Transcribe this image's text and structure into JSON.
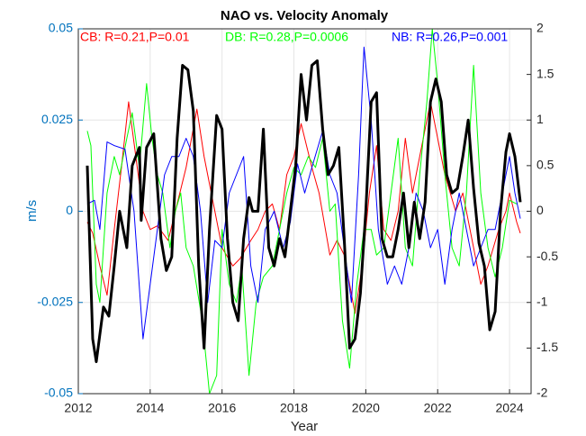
{
  "chart_data": {
    "type": "line",
    "title": "NAO vs. Velocity Anomaly",
    "xlabel": "Year",
    "ylabel": "m/s",
    "ylabel_color": "#0072bd",
    "xlim": [
      2012,
      2024.6
    ],
    "xticks": [
      2012,
      2014,
      2016,
      2018,
      2020,
      2022,
      2024
    ],
    "ylim": [
      -0.05,
      0.05
    ],
    "yticks": [
      -0.05,
      -0.025,
      0,
      0.025,
      0.05
    ],
    "y2lim": [
      -2,
      2
    ],
    "y2ticks": [
      -2,
      -1.5,
      -1,
      -0.5,
      0,
      0.5,
      1,
      1.5,
      2
    ],
    "grid": true,
    "annotations": [
      {
        "text": "CB: R=0.21,P=0.01",
        "color": "#ff0000"
      },
      {
        "text": "DB: R=0.28,P=0.0006",
        "color": "#00ff00"
      },
      {
        "text": "NB: R=0.26,P=0.001",
        "color": "#0000ff"
      }
    ],
    "series": [
      {
        "color": "#ff0000",
        "linewidth": 1,
        "x": [
          2012.25,
          2012.4,
          2012.6,
          2012.8,
          2013.0,
          2013.2,
          2013.4,
          2013.6,
          2013.8,
          2014.0,
          2014.2,
          2014.5,
          2014.7,
          2015.0,
          2015.3,
          2015.5,
          2015.8,
          2016.0,
          2016.3,
          2016.5,
          2016.8,
          2017.0,
          2017.2,
          2017.4,
          2017.6,
          2017.8,
          2018.0,
          2018.2,
          2018.5,
          2018.7,
          2019.0,
          2019.2,
          2019.4,
          2019.7,
          2019.9,
          2020.1,
          2020.3,
          2020.5,
          2020.7,
          2020.9,
          2021.1,
          2021.3,
          2021.5,
          2021.8,
          2022.0,
          2022.2,
          2022.5,
          2022.7,
          2023.0,
          2023.2,
          2023.4,
          2023.7,
          2023.9,
          2024.0,
          2024.2,
          2024.3
        ],
        "values": [
          -0.003,
          -0.006,
          -0.015,
          -0.023,
          -0.005,
          0.012,
          0.03,
          0.015,
          0.0,
          -0.005,
          -0.004,
          -0.008,
          0.0,
          0.012,
          0.028,
          0.015,
          0.0,
          -0.01,
          -0.015,
          -0.013,
          -0.008,
          -0.005,
          0.0,
          0.002,
          -0.005,
          0.01,
          0.015,
          0.024,
          0.012,
          0.005,
          -0.012,
          -0.008,
          -0.012,
          -0.028,
          -0.015,
          0.005,
          0.018,
          -0.005,
          -0.008,
          0.0,
          0.02,
          0.005,
          0.015,
          0.03,
          0.02,
          0.01,
          0.0,
          0.005,
          -0.01,
          -0.02,
          -0.015,
          -0.005,
          0.0,
          0.005,
          -0.003,
          -0.006
        ]
      },
      {
        "color": "#00ff00",
        "linewidth": 1,
        "x": [
          2012.25,
          2012.35,
          2012.5,
          2012.6,
          2012.8,
          2013.0,
          2013.15,
          2013.35,
          2013.5,
          2013.7,
          2013.9,
          2014.05,
          2014.2,
          2014.35,
          2014.55,
          2014.7,
          2014.85,
          2015.0,
          2015.2,
          2015.45,
          2015.65,
          2015.85,
          2016.0,
          2016.2,
          2016.4,
          2016.55,
          2016.75,
          2016.95,
          2017.15,
          2017.4,
          2017.6,
          2017.8,
          2018.0,
          2018.2,
          2018.4,
          2018.6,
          2018.8,
          2019.0,
          2019.15,
          2019.35,
          2019.55,
          2019.75,
          2019.95,
          2020.15,
          2020.3,
          2020.5,
          2020.7,
          2020.9,
          2021.1,
          2021.3,
          2021.5,
          2021.7,
          2021.85,
          2022.0,
          2022.2,
          2022.4,
          2022.6,
          2022.8,
          2023.0,
          2023.2,
          2023.4,
          2023.6,
          2023.8,
          2024.0,
          2024.2
        ],
        "values": [
          0.022,
          0.018,
          -0.02,
          -0.025,
          0.005,
          0.015,
          0.01,
          0.02,
          0.027,
          0.012,
          0.035,
          0.02,
          0.01,
          0.005,
          -0.01,
          0.0,
          0.005,
          -0.01,
          -0.015,
          -0.03,
          -0.05,
          -0.045,
          -0.005,
          -0.02,
          -0.025,
          -0.015,
          -0.045,
          -0.025,
          -0.018,
          -0.015,
          -0.005,
          0.005,
          0.012,
          0.01,
          0.015,
          0.012,
          0.02,
          0.0,
          0.002,
          -0.03,
          -0.043,
          -0.02,
          -0.005,
          -0.005,
          -0.012,
          -0.01,
          0.005,
          0.02,
          -0.01,
          -0.015,
          0.01,
          0.03,
          0.05,
          0.035,
          0.01,
          -0.01,
          -0.015,
          0.005,
          0.04,
          0.005,
          -0.01,
          -0.018,
          -0.01,
          0.003,
          0.002
        ]
      },
      {
        "color": "#0000ff",
        "linewidth": 1,
        "x": [
          2012.25,
          2012.45,
          2012.6,
          2012.8,
          2013.0,
          2013.3,
          2013.55,
          2013.8,
          2014.0,
          2014.2,
          2014.4,
          2014.6,
          2014.8,
          2015.0,
          2015.2,
          2015.4,
          2015.6,
          2015.8,
          2016.0,
          2016.2,
          2016.4,
          2016.6,
          2016.8,
          2017.0,
          2017.2,
          2017.45,
          2017.7,
          2017.9,
          2018.1,
          2018.3,
          2018.5,
          2018.8,
          2019.0,
          2019.2,
          2019.4,
          2019.6,
          2019.8,
          2019.95,
          2020.15,
          2020.35,
          2020.6,
          2020.8,
          2021.0,
          2021.2,
          2021.4,
          2021.6,
          2021.8,
          2022.0,
          2022.2,
          2022.4,
          2022.6,
          2022.8,
          2023.0,
          2023.2,
          2023.4,
          2023.6,
          2023.8,
          2024.0,
          2024.15,
          2024.3
        ],
        "values": [
          0.002,
          0.003,
          -0.005,
          0.019,
          0.018,
          0.017,
          0.0,
          -0.035,
          -0.02,
          -0.005,
          0.01,
          0.015,
          0.015,
          0.02,
          0.015,
          0.0,
          -0.025,
          -0.008,
          -0.01,
          0.005,
          0.01,
          0.015,
          -0.015,
          -0.025,
          -0.005,
          0.0,
          -0.01,
          -0.003,
          0.013,
          0.005,
          0.012,
          0.022,
          0.01,
          0.005,
          -0.01,
          -0.025,
          0.01,
          0.045,
          0.025,
          -0.005,
          -0.02,
          -0.015,
          -0.02,
          -0.01,
          0.005,
          0.0,
          -0.01,
          -0.005,
          -0.02,
          -0.005,
          0.005,
          -0.005,
          -0.015,
          -0.01,
          -0.005,
          -0.005,
          0.005,
          0.015,
          0.005,
          -0.002
        ]
      },
      {
        "color": "#000000",
        "linewidth": 3,
        "axis": "y2",
        "x": [
          2012.25,
          2012.4,
          2012.5,
          2012.7,
          2012.85,
          2013.0,
          2013.15,
          2013.35,
          2013.5,
          2013.7,
          2013.75,
          2013.9,
          2014.1,
          2014.3,
          2014.45,
          2014.6,
          2014.75,
          2014.9,
          2015.05,
          2015.2,
          2015.35,
          2015.5,
          2015.65,
          2015.85,
          2016.0,
          2016.15,
          2016.3,
          2016.45,
          2016.6,
          2016.75,
          2016.85,
          2017.0,
          2017.15,
          2017.3,
          2017.45,
          2017.6,
          2017.75,
          2017.9,
          2018.05,
          2018.2,
          2018.35,
          2018.5,
          2018.65,
          2018.8,
          2018.95,
          2019.1,
          2019.25,
          2019.4,
          2019.55,
          2019.7,
          2019.85,
          2020.0,
          2020.15,
          2020.3,
          2020.45,
          2020.6,
          2020.75,
          2020.9,
          2021.05,
          2021.2,
          2021.35,
          2021.5,
          2021.65,
          2021.8,
          2021.95,
          2022.1,
          2022.25,
          2022.4,
          2022.55,
          2022.7,
          2022.85,
          2023.0,
          2023.15,
          2023.3,
          2023.45,
          2023.6,
          2023.75,
          2023.9,
          2024.0,
          2024.15,
          2024.3
        ],
        "values": [
          0.5,
          -1.4,
          -1.65,
          -1.05,
          -1.15,
          -0.6,
          0.0,
          -0.4,
          0.5,
          0.7,
          -0.1,
          0.7,
          0.85,
          -0.3,
          -0.65,
          -0.5,
          0.8,
          1.6,
          1.55,
          1.1,
          -0.6,
          -1.5,
          -0.2,
          1.05,
          0.9,
          -0.3,
          -1.0,
          -1.2,
          -0.3,
          0.15,
          0.0,
          0.0,
          0.9,
          -0.4,
          -0.6,
          -0.3,
          -0.5,
          0.0,
          0.5,
          1.5,
          1.0,
          1.6,
          1.65,
          0.9,
          0.4,
          0.5,
          0.7,
          -0.3,
          -1.5,
          -1.4,
          -0.9,
          0.0,
          1.2,
          1.3,
          -0.3,
          -0.5,
          -0.5,
          -0.2,
          0.2,
          -0.4,
          0.1,
          -0.3,
          0.1,
          1.2,
          1.45,
          1.2,
          0.4,
          0.2,
          0.25,
          0.6,
          1.0,
          0.25,
          -0.35,
          -0.6,
          -1.3,
          -1.1,
          0.0,
          0.65,
          0.85,
          0.6,
          0.1
        ]
      }
    ]
  }
}
